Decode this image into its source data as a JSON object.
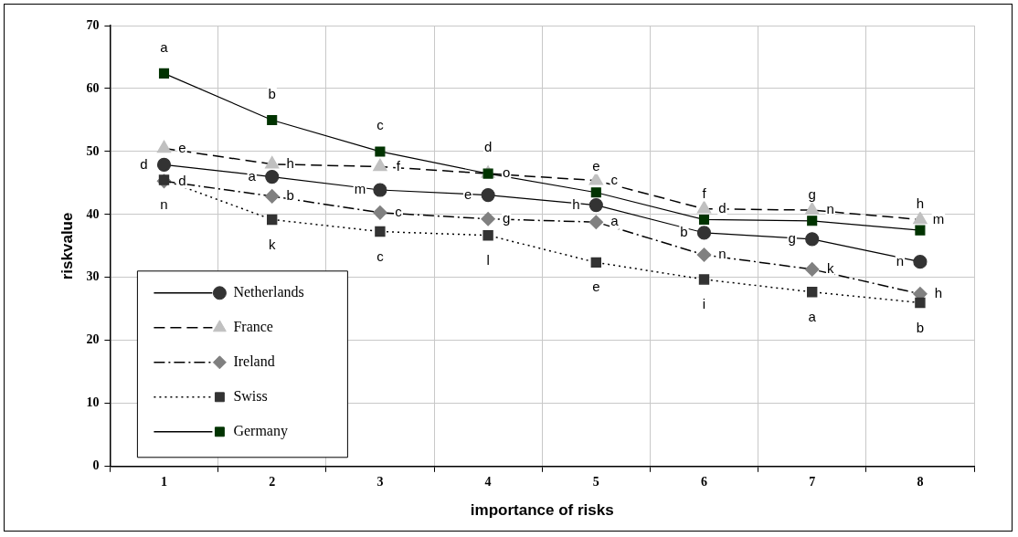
{
  "chart_data": {
    "type": "line",
    "xlabel": "importance of risks",
    "ylabel": "riskvalue",
    "categories": [
      "1",
      "2",
      "3",
      "4",
      "5",
      "6",
      "7",
      "8"
    ],
    "series": [
      {
        "name": "Netherlands",
        "color": "#333333",
        "marker": "circle",
        "line_style": "solid",
        "values": [
          47.9,
          46.0,
          43.9,
          43.1,
          41.5,
          37.1,
          36.1,
          32.5
        ]
      },
      {
        "name": "France",
        "color": "#c0c0c0",
        "marker": "triangle",
        "line_style": "dashed",
        "values": [
          50.5,
          48.0,
          47.6,
          46.5,
          45.4,
          40.9,
          40.7,
          39.2
        ]
      },
      {
        "name": "Ireland",
        "color": "#808080",
        "marker": "diamond",
        "line_style": "dashdot",
        "values": [
          45.3,
          42.9,
          40.3,
          39.3,
          38.8,
          33.6,
          31.3,
          27.4
        ]
      },
      {
        "name": "Swiss",
        "color": "#333333",
        "marker": "square",
        "line_style": "dotted",
        "values": [
          45.5,
          39.2,
          37.3,
          36.7,
          32.4,
          29.7,
          27.7,
          26.0
        ]
      },
      {
        "name": "Germany",
        "color": "#003300",
        "marker": "square",
        "line_style": "solid",
        "values": [
          62.4,
          55.0,
          50.0,
          46.5,
          43.5,
          39.2,
          39.0,
          37.5
        ]
      }
    ],
    "ylim": [
      0,
      70
    ],
    "yticks": [
      0,
      10,
      20,
      30,
      40,
      50,
      60,
      70
    ],
    "grid": true,
    "legend": "bottom left",
    "annotations": [
      {
        "text": "d",
        "x": "1",
        "y": 47.9
      },
      {
        "text": "a",
        "x": "2",
        "y": 46.0
      },
      {
        "text": "m",
        "x": "3",
        "y": 43.9
      },
      {
        "text": "e",
        "x": "4",
        "y": 43.1
      },
      {
        "text": "h",
        "x": "5",
        "y": 41.5
      },
      {
        "text": "b",
        "x": "6",
        "y": 37.1
      },
      {
        "text": "g",
        "x": "7",
        "y": 36.1
      },
      {
        "text": "n",
        "x": "8",
        "y": 32.5
      },
      {
        "text": "e",
        "x": "1",
        "y": 50.5
      },
      {
        "text": "h",
        "x": "2",
        "y": 48.0
      },
      {
        "text": "f",
        "x": "3",
        "y": 47.6
      },
      {
        "text": "o",
        "x": "4",
        "y": 46.5
      },
      {
        "text": "c",
        "x": "5",
        "y": 45.4
      },
      {
        "text": "d",
        "x": "6",
        "y": 40.9
      },
      {
        "text": "n",
        "x": "7",
        "y": 40.7
      },
      {
        "text": "m",
        "x": "8",
        "y": 39.2
      },
      {
        "text": "d",
        "x": "1",
        "y": 45.3
      },
      {
        "text": "b",
        "x": "2",
        "y": 42.9
      },
      {
        "text": "c",
        "x": "3",
        "y": 40.3
      },
      {
        "text": "g",
        "x": "4",
        "y": 39.3
      },
      {
        "text": "a",
        "x": "5",
        "y": 38.8
      },
      {
        "text": "n",
        "x": "6",
        "y": 33.6
      },
      {
        "text": "k",
        "x": "7",
        "y": 31.3
      },
      {
        "text": "h",
        "x": "8",
        "y": 27.4
      },
      {
        "text": "n",
        "x": "1",
        "y": 45.5
      },
      {
        "text": "k",
        "x": "2",
        "y": 39.2
      },
      {
        "text": "c",
        "x": "3",
        "y": 37.3
      },
      {
        "text": "l",
        "x": "4",
        "y": 36.7
      },
      {
        "text": "e",
        "x": "5",
        "y": 32.4
      },
      {
        "text": "i",
        "x": "6",
        "y": 29.7
      },
      {
        "text": "a",
        "x": "7",
        "y": 27.7
      },
      {
        "text": "b",
        "x": "8",
        "y": 26.0
      },
      {
        "text": "a",
        "x": "1",
        "y": 62.4
      },
      {
        "text": "b",
        "x": "2",
        "y": 55.0
      },
      {
        "text": "c",
        "x": "3",
        "y": 50.0
      },
      {
        "text": "d",
        "x": "4",
        "y": 46.5
      },
      {
        "text": "e",
        "x": "5",
        "y": 43.5
      },
      {
        "text": "f",
        "x": "6",
        "y": 39.2
      },
      {
        "text": "g",
        "x": "7",
        "y": 39.0
      },
      {
        "text": "h",
        "x": "8",
        "y": 37.5
      }
    ]
  }
}
